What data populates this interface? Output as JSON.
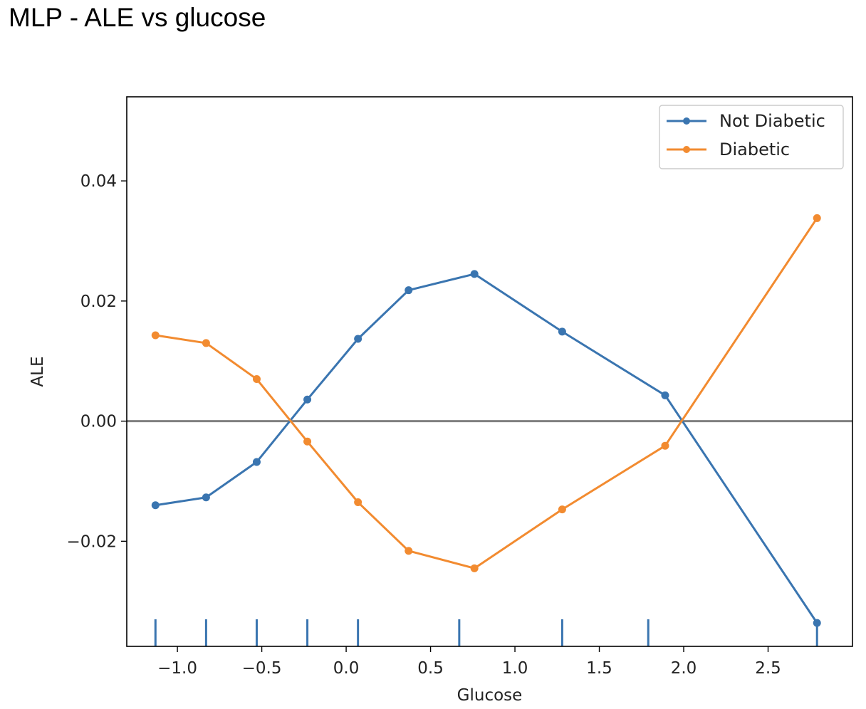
{
  "page": {
    "title": "MLP - ALE vs glucose"
  },
  "chart_data": {
    "type": "line",
    "xlabel": "Glucose",
    "ylabel": "ALE",
    "xlim": [
      -1.3,
      3.0
    ],
    "ylim": [
      -0.0375,
      0.054
    ],
    "xticks": [
      -1.0,
      -0.5,
      0.0,
      0.5,
      1.0,
      1.5,
      2.0,
      2.5
    ],
    "xtick_labels": [
      "−1.0",
      "−0.5",
      "0.0",
      "0.5",
      "1.0",
      "1.5",
      "2.0",
      "2.5"
    ],
    "yticks": [
      -0.02,
      0.0,
      0.02,
      0.04
    ],
    "ytick_labels": [
      "−0.02",
      "0.00",
      "0.02",
      "0.04"
    ],
    "grid": false,
    "legend_position": "top-right",
    "reference_line": {
      "y": 0.0,
      "color": "#808080"
    },
    "x": [
      -1.13,
      -0.83,
      -0.53,
      -0.23,
      0.07,
      0.37,
      0.76,
      1.28,
      1.89,
      2.79
    ],
    "series": [
      {
        "name": "Not Diabetic",
        "color": "#3a75b0",
        "values": [
          -0.014,
          -0.0127,
          -0.0068,
          0.0036,
          0.0137,
          0.0218,
          0.0245,
          0.0149,
          0.0043,
          -0.0336
        ]
      },
      {
        "name": "Diabetic",
        "color": "#f28b30",
        "values": [
          0.0143,
          0.013,
          0.007,
          -0.0034,
          -0.0135,
          -0.0216,
          -0.0245,
          -0.0147,
          -0.0041,
          0.0338
        ]
      }
    ],
    "rug": {
      "color": "#3a75b0",
      "x": [
        -1.13,
        -0.83,
        -0.53,
        -0.23,
        0.07,
        0.67,
        1.28,
        1.79,
        2.79
      ]
    }
  }
}
